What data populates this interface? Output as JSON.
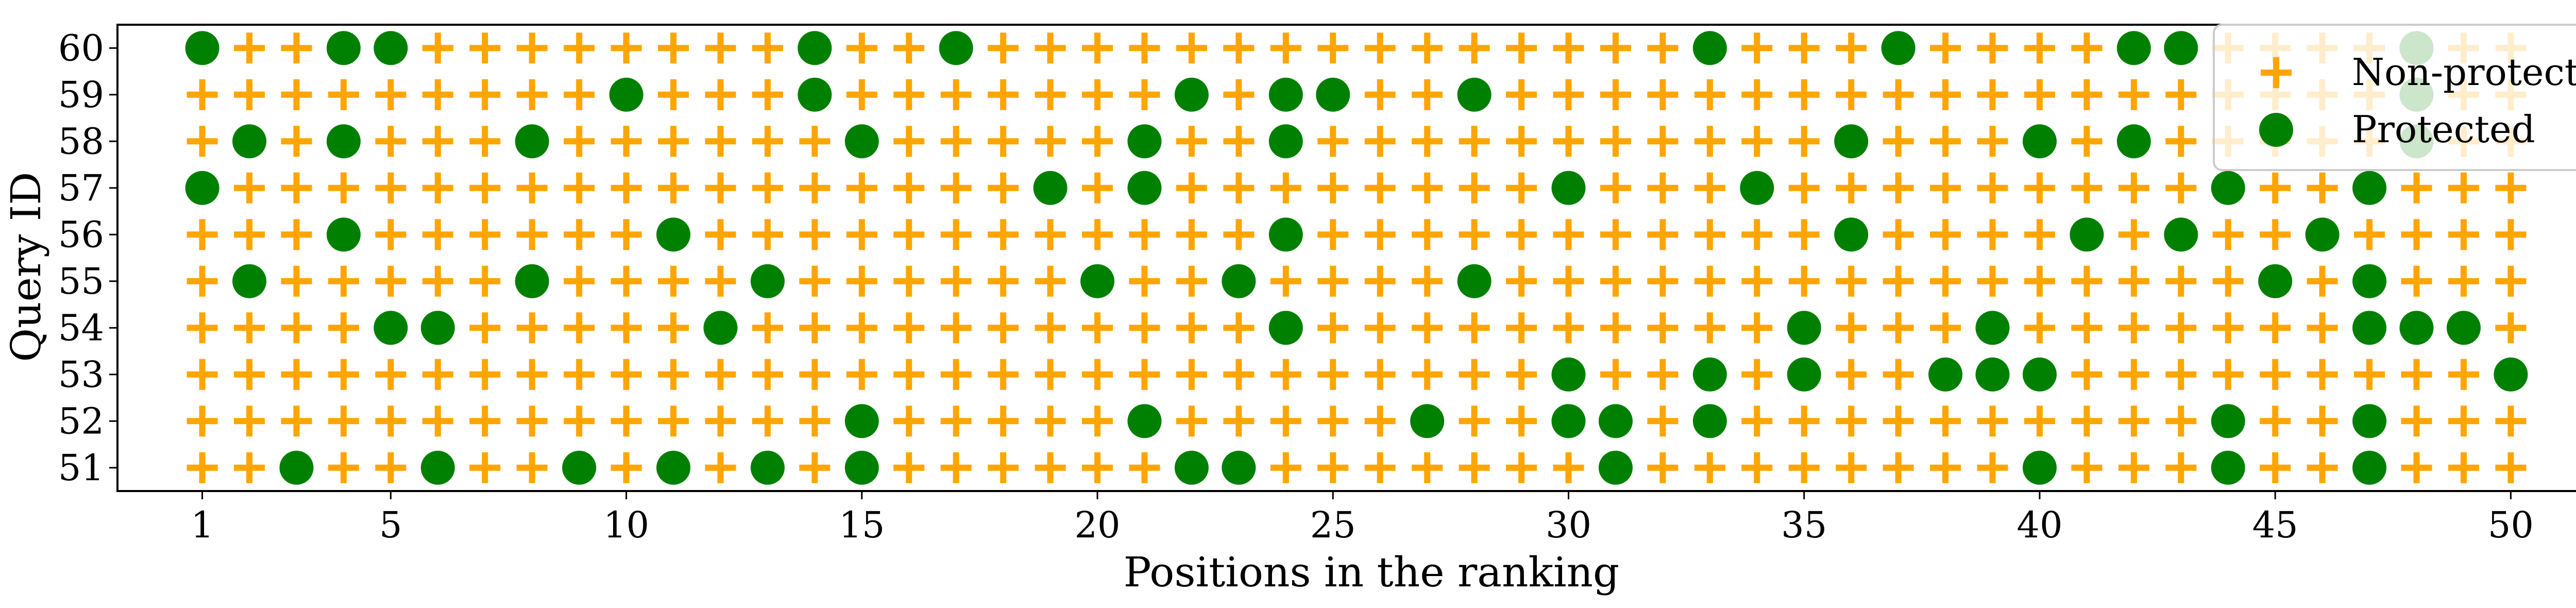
{
  "chart_data": {
    "type": "scatter",
    "title": "",
    "xlabel": "Positions in the ranking",
    "ylabel": "Query ID",
    "xlim": [
      -0.8,
      51.8
    ],
    "ylim": [
      50.5,
      60.5
    ],
    "xticks": [
      1,
      5,
      10,
      15,
      20,
      25,
      30,
      35,
      40,
      45,
      50
    ],
    "yticks": [
      51,
      52,
      53,
      54,
      55,
      56,
      57,
      58,
      59,
      60
    ],
    "positions": [
      1,
      50
    ],
    "queries": [
      51,
      60
    ],
    "grid": false,
    "legend_position": "top-right",
    "series": [
      {
        "name": "Non-protected",
        "marker": "plus",
        "color": "#FFA500",
        "rule": "every position not listed as Protected for the query"
      },
      {
        "name": "Protected",
        "marker": "circle",
        "color": "#008000",
        "points": {
          "51": [
            3,
            6,
            9,
            11,
            13,
            15,
            22,
            23,
            31,
            40,
            44,
            47
          ],
          "52": [
            15,
            21,
            27,
            30,
            31,
            33,
            44,
            47
          ],
          "53": [
            30,
            33,
            35,
            38,
            39,
            40,
            50
          ],
          "54": [
            5,
            6,
            12,
            24,
            35,
            39,
            47,
            48,
            49
          ],
          "55": [
            2,
            8,
            13,
            20,
            23,
            28,
            45,
            47
          ],
          "56": [
            4,
            11,
            24,
            36,
            41,
            43,
            46
          ],
          "57": [
            1,
            19,
            21,
            30,
            34,
            44,
            47
          ],
          "58": [
            2,
            4,
            8,
            15,
            21,
            24,
            36,
            40,
            42,
            48
          ],
          "59": [
            10,
            14,
            22,
            24,
            25,
            28,
            48
          ],
          "60": [
            1,
            4,
            5,
            14,
            17,
            33,
            37,
            42,
            43,
            48
          ]
        }
      }
    ]
  }
}
